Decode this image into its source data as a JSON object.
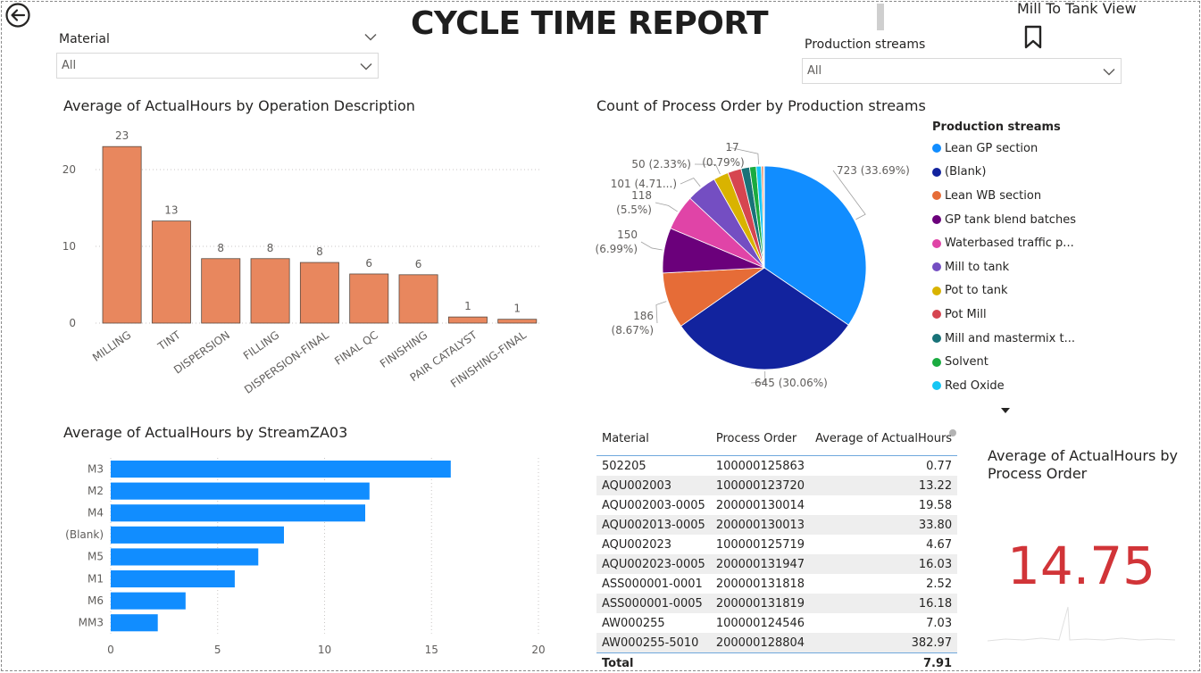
{
  "header": {
    "title": "CYCLE TIME REPORT",
    "mill_view_label": "Mill To Tank View"
  },
  "slicers": {
    "material": {
      "label": "Material",
      "value": "All"
    },
    "streams": {
      "label": "Production streams",
      "value": "All"
    }
  },
  "card": {
    "title_line1": "Average of ActualHours by",
    "title_line2": "Process Order",
    "value": "14.75"
  },
  "table": {
    "headers": [
      "Material",
      "Process Order",
      "Average of ActualHours"
    ],
    "rows": [
      [
        "502205",
        "100000125863",
        "0.77"
      ],
      [
        "AQU002003",
        "100000123720",
        "13.22"
      ],
      [
        "AQU002003-0005",
        "200000130014",
        "19.58"
      ],
      [
        "AQU002013-0005",
        "200000130013",
        "33.80"
      ],
      [
        "AQU002023",
        "100000125719",
        "4.67"
      ],
      [
        "AQU002023-0005",
        "200000131947",
        "16.03"
      ],
      [
        "ASS000001-0001",
        "200000131818",
        "2.52"
      ],
      [
        "ASS000001-0005",
        "200000131819",
        "16.18"
      ],
      [
        "AW000255",
        "100000124546",
        "7.03"
      ],
      [
        "AW000255-5010",
        "200000128804",
        "382.97"
      ]
    ],
    "total_label": "Total",
    "total_value": "7.91"
  },
  "colors": {
    "bar_orange": "#E8875E",
    "bar_blue": "#118DFF",
    "card_red": "#D13438"
  },
  "chart_data": [
    {
      "type": "bar",
      "title": "Average of ActualHours by Operation Description",
      "categories": [
        "MILLING",
        "TINT",
        "DISPERSION",
        "FILLING",
        "DISPERSION-FINAL",
        "FINAL QC",
        "FINISHING",
        "PAIR CATALYST",
        "FINISHING-FINAL"
      ],
      "values": [
        23,
        13.3,
        8.4,
        8.4,
        7.9,
        6.4,
        6.3,
        0.8,
        0.5
      ],
      "data_labels": [
        "23",
        "13",
        "8",
        "8",
        "8",
        "6",
        "6",
        "1",
        "1"
      ],
      "y_ticks": [
        0,
        10,
        20
      ],
      "ylim": [
        0,
        25
      ],
      "grid": true
    },
    {
      "type": "pie",
      "title": "Count of Process Order by Production streams",
      "legend_title": "Production streams",
      "legend_placement": "right",
      "slices": [
        {
          "name": "Lean GP section",
          "value": 723,
          "color": "#118DFF",
          "label": "723 (33.69%)"
        },
        {
          "name": "(Blank)",
          "value": 645,
          "color": "#12239E",
          "label": "645 (30.06%)"
        },
        {
          "name": "Lean WB section",
          "value": 186,
          "color": "#E66C37",
          "label": "186 (8.67%)"
        },
        {
          "name": "GP tank blend batches",
          "value": 150,
          "color": "#6B007B",
          "label": "150 (6.99%)"
        },
        {
          "name": "Waterbased traffic p...",
          "value": 118,
          "color": "#E044A7",
          "label": "118 (5.5%)"
        },
        {
          "name": "Mill to tank",
          "value": 101,
          "color": "#744EC2",
          "label": "101 (4.71...)"
        },
        {
          "name": "Pot to tank",
          "value": 50,
          "color": "#D9B300",
          "label": "50 (2.33%)"
        },
        {
          "name": "Pot Mill",
          "value": 45,
          "color": "#D64550",
          "label": ""
        },
        {
          "name": "Mill and mastermix t...",
          "value": 28,
          "color": "#197278",
          "label": ""
        },
        {
          "name": "Solvent",
          "value": 22,
          "color": "#1AAB40",
          "label": ""
        },
        {
          "name": "Red Oxide",
          "value": 17,
          "color": "#15C6F4",
          "label": "17 (0.79%)"
        },
        {
          "name": "",
          "value": 7,
          "color": "#E8875E",
          "label": ""
        },
        {
          "name": "",
          "value": 3,
          "color": "#A0A0A0",
          "label": ""
        }
      ]
    },
    {
      "type": "bar",
      "orientation": "horizontal",
      "title": "Average of ActualHours by StreamZA03",
      "categories": [
        "M3",
        "M2",
        "M4",
        "(Blank)",
        "M5",
        "M1",
        "M6",
        "MM3"
      ],
      "values": [
        15.9,
        12.1,
        11.9,
        8.1,
        6.9,
        5.8,
        3.5,
        2.2
      ],
      "x_ticks": [
        0,
        5,
        10,
        15,
        20
      ],
      "xlim": [
        0,
        20
      ],
      "grid": true
    }
  ]
}
